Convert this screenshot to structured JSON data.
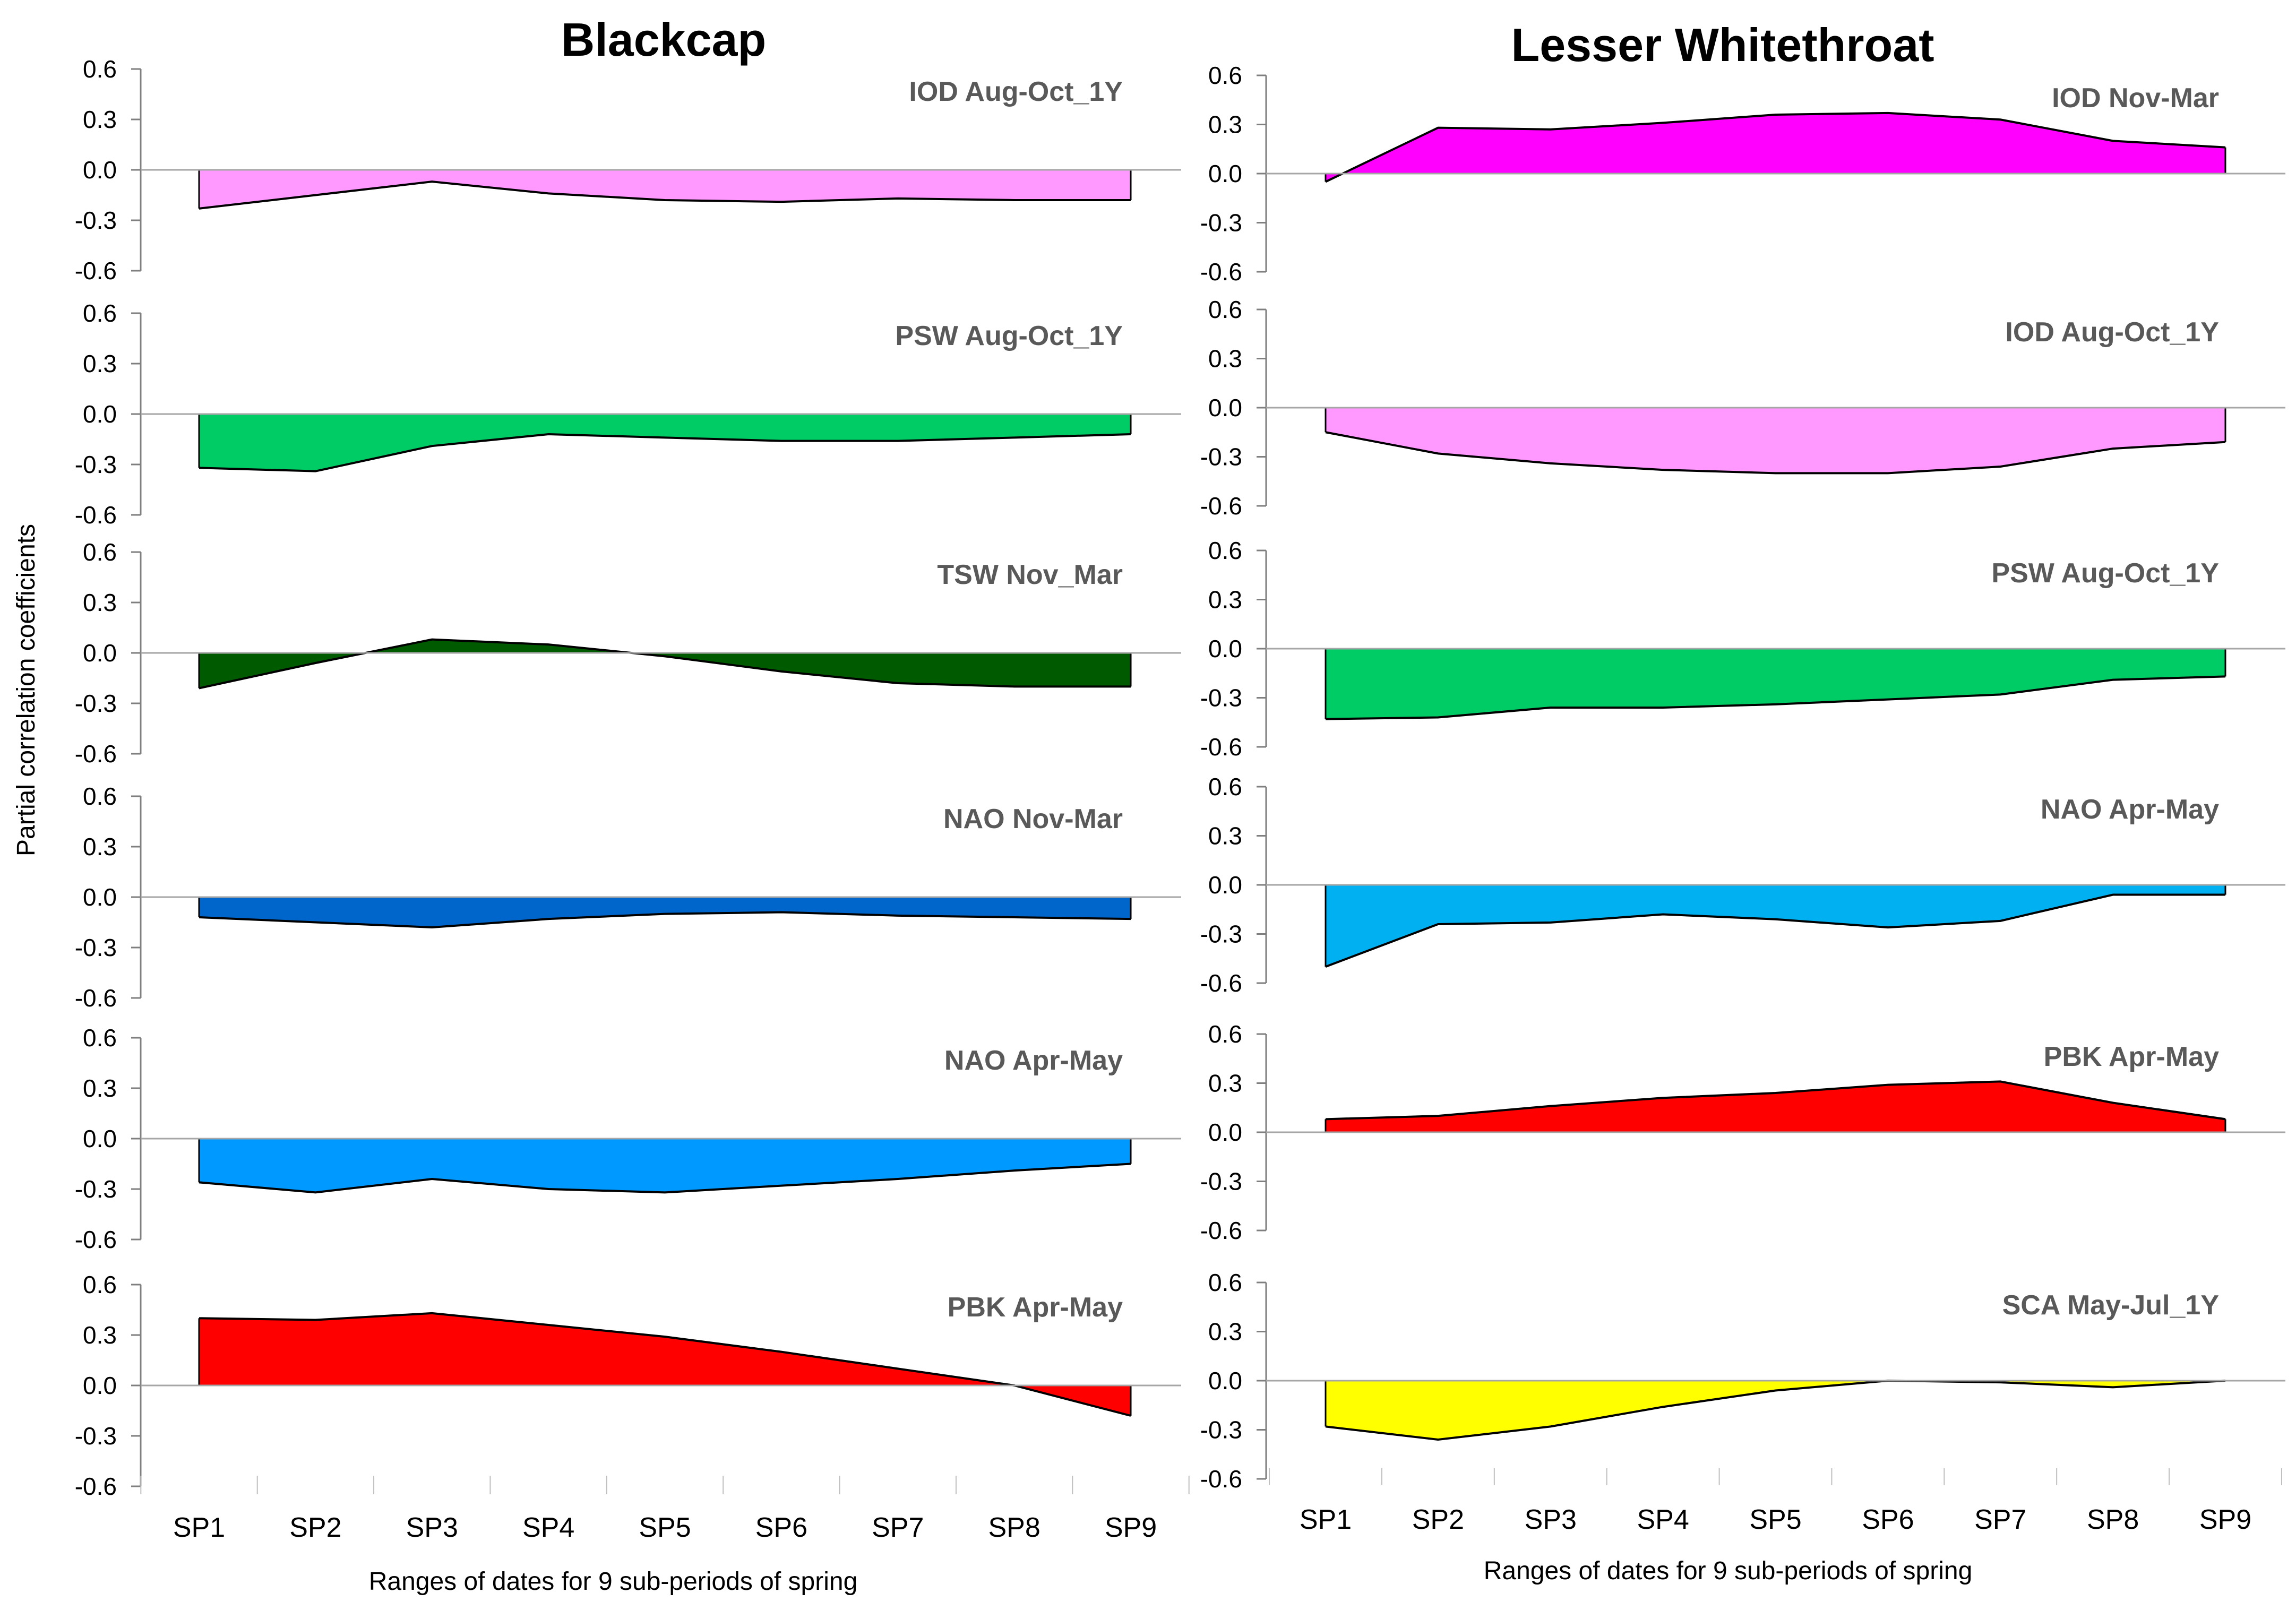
{
  "figure": {
    "ylabel": "Partial correlation coefficients"
  },
  "chart_data": [
    {
      "type": "area",
      "title": "Blackcap",
      "xlabel": "Ranges of dates for 9 sub-periods of spring",
      "ylabel": "Partial correlation coefficients",
      "categories": [
        "SP1",
        "SP2",
        "SP3",
        "SP4",
        "SP5",
        "SP6",
        "SP7",
        "SP8",
        "SP9"
      ],
      "yticks": [
        "0.6",
        "0.3",
        "0.0",
        "-0.3",
        "-0.6"
      ],
      "ylim": [
        -0.6,
        0.6
      ],
      "grid": false,
      "panels": [
        {
          "label": "IOD Aug-Oct_1Y",
          "color": "#FF99FF",
          "values": [
            -0.23,
            -0.15,
            -0.07,
            -0.14,
            -0.18,
            -0.19,
            -0.17,
            -0.18,
            -0.18
          ]
        },
        {
          "label": "PSW Aug-Oct_1Y",
          "color": "#00CC66",
          "values": [
            -0.32,
            -0.34,
            -0.19,
            -0.12,
            -0.14,
            -0.16,
            -0.16,
            -0.14,
            -0.12
          ]
        },
        {
          "label": "TSW Nov_Mar",
          "color": "#005A00",
          "values": [
            -0.21,
            -0.06,
            0.08,
            0.05,
            -0.02,
            -0.11,
            -0.18,
            -0.2,
            -0.2
          ]
        },
        {
          "label": "NAO Nov-Mar",
          "color": "#0066CC",
          "values": [
            -0.12,
            -0.15,
            -0.18,
            -0.13,
            -0.1,
            -0.09,
            -0.11,
            -0.12,
            -0.13
          ]
        },
        {
          "label": "NAO Apr-May",
          "color": "#0099FF",
          "values": [
            -0.26,
            -0.32,
            -0.24,
            -0.3,
            -0.32,
            -0.28,
            -0.24,
            -0.19,
            -0.15
          ]
        },
        {
          "label": "PBK Apr-May",
          "color": "#FF0000",
          "values": [
            0.4,
            0.39,
            0.43,
            0.36,
            0.29,
            0.2,
            0.1,
            0.0,
            -0.18
          ]
        }
      ]
    },
    {
      "type": "area",
      "title": "Lesser Whitethroat",
      "xlabel": "Ranges of dates for 9 sub-periods of spring",
      "ylabel": "Partial correlation coefficients",
      "categories": [
        "SP1",
        "SP2",
        "SP3",
        "SP4",
        "SP5",
        "SP6",
        "SP7",
        "SP8",
        "SP9"
      ],
      "yticks": [
        "0.6",
        "0.3",
        "0.0",
        "-0.3",
        "-0.6"
      ],
      "ylim": [
        -0.6,
        0.6
      ],
      "grid": false,
      "panels": [
        {
          "label": "IOD Nov-Mar",
          "color": "#FF00FF",
          "values": [
            -0.05,
            0.28,
            0.27,
            0.31,
            0.36,
            0.37,
            0.33,
            0.2,
            0.16
          ]
        },
        {
          "label": "IOD Aug-Oct_1Y",
          "color": "#FF99FF",
          "values": [
            -0.15,
            -0.28,
            -0.34,
            -0.38,
            -0.4,
            -0.4,
            -0.36,
            -0.25,
            -0.21
          ]
        },
        {
          "label": "PSW Aug-Oct_1Y",
          "color": "#00CC66",
          "values": [
            -0.43,
            -0.42,
            -0.36,
            -0.36,
            -0.34,
            -0.31,
            -0.28,
            -0.19,
            -0.17
          ]
        },
        {
          "label": "NAO Apr-May",
          "color": "#00B0F0",
          "values": [
            -0.5,
            -0.24,
            -0.23,
            -0.18,
            -0.21,
            -0.26,
            -0.22,
            -0.06,
            -0.06
          ]
        },
        {
          "label": "PBK Apr-May",
          "color": "#FF0000",
          "values": [
            0.08,
            0.1,
            0.16,
            0.21,
            0.24,
            0.29,
            0.31,
            0.18,
            0.08
          ]
        },
        {
          "label": "SCA May-Jul_1Y",
          "color": "#FFFF00",
          "values": [
            -0.28,
            -0.36,
            -0.28,
            -0.16,
            -0.06,
            0.0,
            -0.01,
            -0.04,
            0.0
          ]
        }
      ]
    }
  ]
}
